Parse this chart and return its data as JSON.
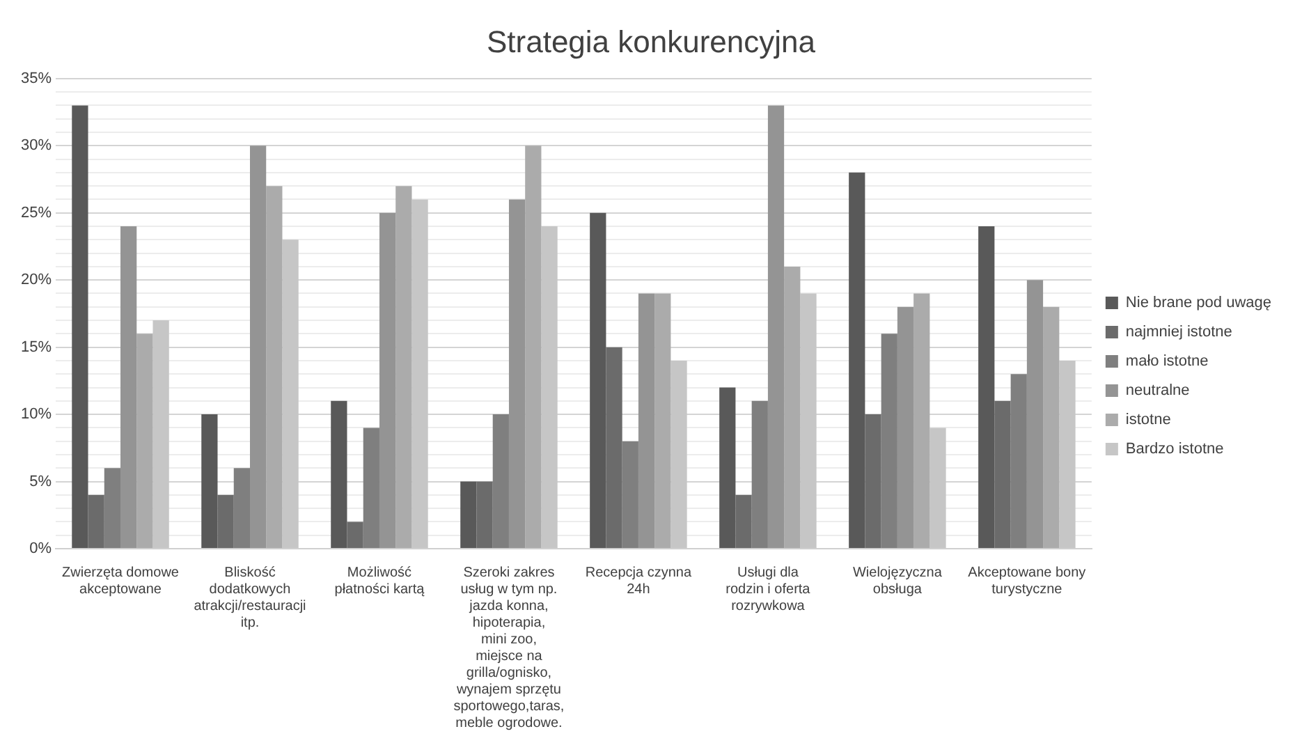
{
  "chart_data": {
    "type": "bar",
    "title": "Strategia konkurencyjna",
    "categories": [
      "Zwierzęta domowe akceptowane",
      "Bliskość dodatkowych atrakcji/restauracji itp.",
      "Możliwość płatności kartą",
      "Szeroki zakres usług w tym np. jazda konna, hipoterapia, mini zoo, miejsce na grilla/ognisko, wynajem sprzętu sportowego,taras, meble ogrodowe.",
      "Recepcja czynna 24h",
      "Usługi dla rodzin i oferta rozrywkowa",
      "Wielojęzyczna obsługa",
      "Akceptowane bony turystyczne"
    ],
    "series": [
      {
        "name": "Nie brane pod uwagę",
        "color": "#595959",
        "values": [
          33,
          10,
          11,
          5,
          25,
          12,
          28,
          24
        ]
      },
      {
        "name": "najmniej istotne",
        "color": "#6b6b6b",
        "values": [
          4,
          4,
          2,
          5,
          15,
          4,
          10,
          11
        ]
      },
      {
        "name": "mało istotne",
        "color": "#7f7f7f",
        "values": [
          6,
          6,
          9,
          10,
          8,
          11,
          16,
          13
        ]
      },
      {
        "name": "neutralne",
        "color": "#949494",
        "values": [
          24,
          30,
          25,
          26,
          19,
          33,
          18,
          20
        ]
      },
      {
        "name": "istotne",
        "color": "#ababab",
        "values": [
          16,
          27,
          27,
          30,
          19,
          21,
          19,
          18
        ]
      },
      {
        "name": "Bardzo istotne",
        "color": "#c6c6c6",
        "values": [
          17,
          23,
          26,
          24,
          14,
          19,
          9,
          14
        ]
      }
    ],
    "ylim": [
      0,
      35
    ],
    "yticks": [
      {
        "value": 0,
        "label": "0%"
      },
      {
        "value": 1,
        "label": null
      },
      {
        "value": 2,
        "label": null
      },
      {
        "value": 3,
        "label": null
      },
      {
        "value": 4,
        "label": null
      },
      {
        "value": 5,
        "label": "5%"
      },
      {
        "value": 6,
        "label": null
      },
      {
        "value": 7,
        "label": null
      },
      {
        "value": 8,
        "label": null
      },
      {
        "value": 9,
        "label": null
      },
      {
        "value": 10,
        "label": "10%"
      },
      {
        "value": 11,
        "label": null
      },
      {
        "value": 12,
        "label": null
      },
      {
        "value": 13,
        "label": null
      },
      {
        "value": 14,
        "label": null
      },
      {
        "value": 15,
        "label": "15%"
      },
      {
        "value": 16,
        "label": null
      },
      {
        "value": 17,
        "label": null
      },
      {
        "value": 18,
        "label": null
      },
      {
        "value": 19,
        "label": null
      },
      {
        "value": 20,
        "label": "20%"
      },
      {
        "value": 21,
        "label": null
      },
      {
        "value": 22,
        "label": null
      },
      {
        "value": 23,
        "label": null
      },
      {
        "value": 24,
        "label": null
      },
      {
        "value": 25,
        "label": "25%"
      },
      {
        "value": 26,
        "label": null
      },
      {
        "value": 27,
        "label": null
      },
      {
        "value": 28,
        "label": null
      },
      {
        "value": 29,
        "label": null
      },
      {
        "value": 30,
        "label": "30%"
      },
      {
        "value": 31,
        "label": null
      },
      {
        "value": 32,
        "label": null
      },
      {
        "value": 33,
        "label": null
      },
      {
        "value": 34,
        "label": null
      },
      {
        "value": 35,
        "label": "35%"
      }
    ],
    "grid": "y",
    "legend": "right"
  }
}
